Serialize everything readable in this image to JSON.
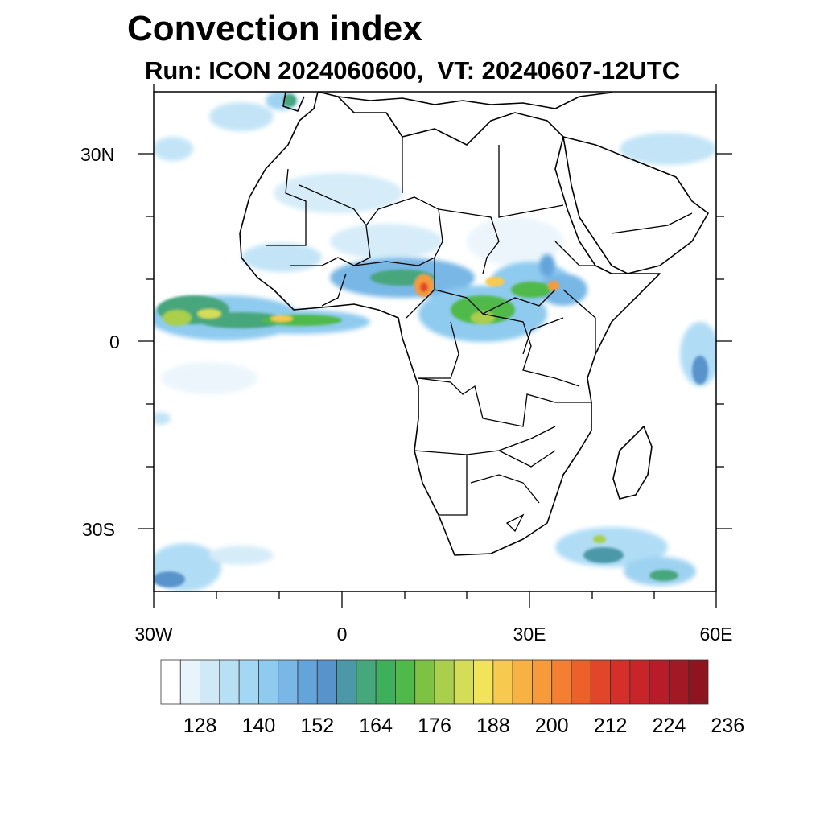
{
  "header": {
    "title": "Convection index",
    "subtitle": "Run: ICON 2024060600,  VT: 20240607-12UTC"
  },
  "map": {
    "lat_labels": [
      "30N",
      "0",
      "30S"
    ],
    "lon_labels": [
      "30W",
      "0",
      "30E",
      "60E"
    ],
    "extent": {
      "lon_min": -30,
      "lon_max": 60,
      "lat_min": -40,
      "lat_max": 40
    }
  },
  "colorbar": {
    "labels": [
      "128",
      "140",
      "152",
      "164",
      "176",
      "188",
      "200",
      "212",
      "224",
      "236"
    ],
    "colors": [
      "#ffffff",
      "#e8f4fb",
      "#cfe9f7",
      "#b8e0f5",
      "#a3d7f4",
      "#8ecbef",
      "#78b7e6",
      "#63a4db",
      "#5993cc",
      "#4b98a8",
      "#46a67c",
      "#3eaf5a",
      "#4fb94a",
      "#7dc243",
      "#a9cf4c",
      "#d4dd55",
      "#f1e45a",
      "#f7c94f",
      "#f8b244",
      "#f79a3a",
      "#f47f32",
      "#ec612a",
      "#e2462a",
      "#d62f2a",
      "#c8242a",
      "#b71c28",
      "#a21824",
      "#8e1520"
    ]
  }
}
